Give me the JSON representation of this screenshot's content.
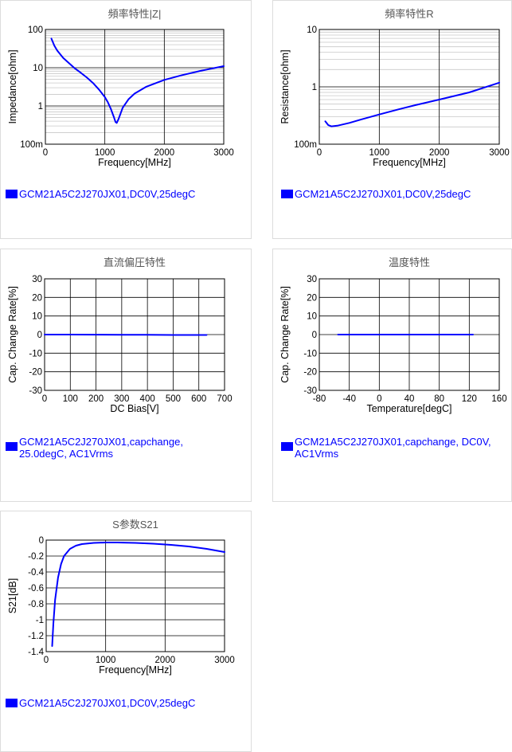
{
  "colors": {
    "series": "#0000ff",
    "grid_major": "#000000",
    "grid_minor": "#c8c8c8",
    "title": "#555555"
  },
  "chart_data": [
    {
      "id": "impedance",
      "type": "line",
      "title": "頻率特性|Z|",
      "xlabel": "Frequency[MHz]",
      "ylabel": "Impedance[ohm]",
      "xscale": "linear",
      "xlim": [
        0,
        3000
      ],
      "yscale": "log",
      "ylim": [
        0.1,
        100
      ],
      "xticks": [
        0,
        1000,
        2000,
        3000
      ],
      "xtick_labels": [
        "0",
        "1000",
        "2000",
        "3000"
      ],
      "yticks": [
        0.1,
        1,
        10,
        100
      ],
      "ytick_labels": [
        "100m",
        "1",
        "10",
        "100"
      ],
      "grid": true,
      "legend": "GCM21A5C2J270JX01,DC0V,25degC",
      "series": [
        {
          "points": [
            [
              100,
              58
            ],
            [
              150,
              38
            ],
            [
              200,
              28
            ],
            [
              300,
              18
            ],
            [
              400,
              13
            ],
            [
              500,
              9.5
            ],
            [
              600,
              7.3
            ],
            [
              700,
              5.5
            ],
            [
              800,
              4.0
            ],
            [
              900,
              2.7
            ],
            [
              1000,
              1.7
            ],
            [
              1050,
              1.25
            ],
            [
              1100,
              0.85
            ],
            [
              1150,
              0.52
            ],
            [
              1180,
              0.38
            ],
            [
              1200,
              0.36
            ],
            [
              1230,
              0.45
            ],
            [
              1300,
              0.9
            ],
            [
              1400,
              1.5
            ],
            [
              1500,
              2.1
            ],
            [
              1700,
              3.2
            ],
            [
              2000,
              4.8
            ],
            [
              2300,
              6.4
            ],
            [
              2600,
              8.2
            ],
            [
              3000,
              11.0
            ]
          ]
        }
      ]
    },
    {
      "id": "resistance",
      "type": "line",
      "title": "頻率特性R",
      "xlabel": "Frequency[MHz]",
      "ylabel": "Resistance[ohm]",
      "xscale": "linear",
      "xlim": [
        0,
        3000
      ],
      "yscale": "log",
      "ylim": [
        0.1,
        10
      ],
      "xticks": [
        0,
        1000,
        2000,
        3000
      ],
      "xtick_labels": [
        "0",
        "1000",
        "2000",
        "3000"
      ],
      "yticks": [
        0.1,
        1,
        10
      ],
      "ytick_labels": [
        "100m",
        "1",
        "10"
      ],
      "grid": true,
      "legend": "GCM21A5C2J270JX01,DC0V,25degC",
      "series": [
        {
          "points": [
            [
              100,
              0.25
            ],
            [
              150,
              0.215
            ],
            [
              200,
              0.205
            ],
            [
              300,
              0.21
            ],
            [
              500,
              0.235
            ],
            [
              700,
              0.27
            ],
            [
              1000,
              0.33
            ],
            [
              1300,
              0.4
            ],
            [
              1600,
              0.48
            ],
            [
              2000,
              0.6
            ],
            [
              2500,
              0.8
            ],
            [
              3000,
              1.18
            ]
          ]
        }
      ]
    },
    {
      "id": "dcbias",
      "type": "line",
      "title": "直流偏圧特性",
      "xlabel": "DC Bias[V]",
      "ylabel": "Cap. Change Rate[%]",
      "xscale": "linear",
      "xlim": [
        0,
        700
      ],
      "yscale": "linear",
      "ylim": [
        -30,
        30
      ],
      "xticks": [
        0,
        100,
        200,
        300,
        400,
        500,
        600,
        700
      ],
      "xtick_labels": [
        "0",
        "100",
        "200",
        "300",
        "400",
        "500",
        "600",
        "700"
      ],
      "yticks": [
        -30,
        -20,
        -10,
        0,
        10,
        20,
        30
      ],
      "ytick_labels": [
        "-30",
        "-20",
        "-10",
        "0",
        "10",
        "20",
        "30"
      ],
      "grid": true,
      "legend": "GCM21A5C2J270JX01,capchange, 25.0degC, AC1Vrms",
      "series": [
        {
          "points": [
            [
              0,
              0
            ],
            [
              100,
              0
            ],
            [
              200,
              -0.05
            ],
            [
              300,
              -0.1
            ],
            [
              400,
              -0.15
            ],
            [
              500,
              -0.2
            ],
            [
              630,
              -0.2
            ]
          ]
        }
      ]
    },
    {
      "id": "temperature",
      "type": "line",
      "title": "温度特性",
      "xlabel": "Temperature[degC]",
      "ylabel": "Cap. Change Rate[%]",
      "xscale": "linear",
      "xlim": [
        -80,
        160
      ],
      "yscale": "linear",
      "ylim": [
        -30,
        30
      ],
      "xticks": [
        -80,
        -40,
        0,
        40,
        80,
        120,
        160
      ],
      "xtick_labels": [
        "-80",
        "-40",
        "0",
        "40",
        "80",
        "120",
        "160"
      ],
      "yticks": [
        -30,
        -20,
        -10,
        0,
        10,
        20,
        30
      ],
      "ytick_labels": [
        "-30",
        "-20",
        "-10",
        "0",
        "10",
        "20",
        "30"
      ],
      "grid": true,
      "legend": "GCM21A5C2J270JX01,capchange, DC0V, AC1Vrms",
      "series": [
        {
          "points": [
            [
              -55,
              0
            ],
            [
              0,
              0
            ],
            [
              25,
              0
            ],
            [
              125,
              0
            ]
          ]
        }
      ]
    },
    {
      "id": "s21",
      "type": "line",
      "title": "S参数S21",
      "xlabel": "Frequency[MHz]",
      "ylabel": "S21[dB]",
      "xscale": "linear",
      "xlim": [
        0,
        3000
      ],
      "yscale": "linear",
      "ylim": [
        -1.4,
        0
      ],
      "xticks": [
        0,
        1000,
        2000,
        3000
      ],
      "xtick_labels": [
        "0",
        "1000",
        "2000",
        "3000"
      ],
      "yticks": [
        -1.4,
        -1.2,
        -1,
        -0.8,
        -0.6,
        -0.4,
        -0.2,
        0
      ],
      "ytick_labels": [
        "-1.4",
        "-1.2",
        "-1",
        "-0.8",
        "-0.6",
        "-0.4",
        "-0.2",
        "0"
      ],
      "grid": true,
      "legend": "GCM21A5C2J270JX01,DC0V,25degC",
      "series": [
        {
          "points": [
            [
              100,
              -1.33
            ],
            [
              120,
              -1.05
            ],
            [
              150,
              -0.75
            ],
            [
              200,
              -0.47
            ],
            [
              250,
              -0.3
            ],
            [
              300,
              -0.2
            ],
            [
              400,
              -0.11
            ],
            [
              500,
              -0.07
            ],
            [
              600,
              -0.05
            ],
            [
              800,
              -0.035
            ],
            [
              1000,
              -0.03
            ],
            [
              1200,
              -0.03
            ],
            [
              1500,
              -0.035
            ],
            [
              1800,
              -0.045
            ],
            [
              2100,
              -0.06
            ],
            [
              2400,
              -0.08
            ],
            [
              2700,
              -0.11
            ],
            [
              3000,
              -0.15
            ]
          ]
        }
      ]
    }
  ]
}
